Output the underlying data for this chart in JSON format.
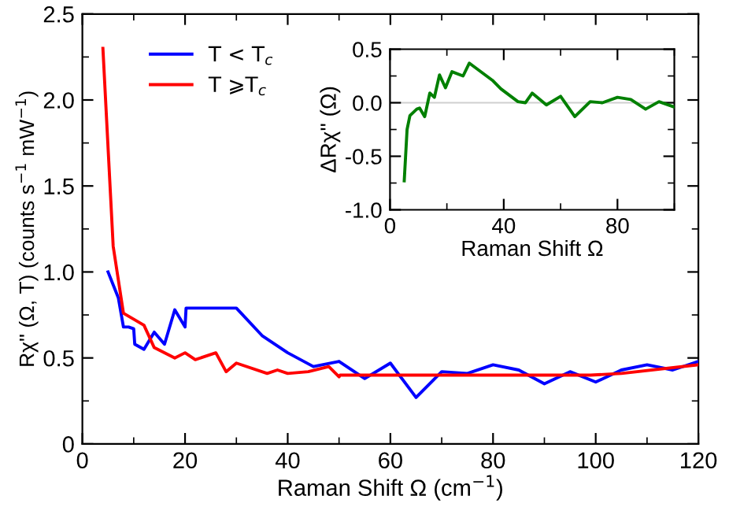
{
  "chart_data": [
    {
      "type": "line",
      "xlabel": "Raman Shift Ω (cm$^{−1}$)",
      "ylabel": "Rχ'' (Ω, T) (counts s$^{−1}$ mW$^{−1}$)",
      "xlim": [
        0,
        120
      ],
      "ylim": [
        0,
        2.5
      ],
      "xticks": [
        0,
        20,
        40,
        60,
        80,
        100,
        120
      ],
      "yticks": [
        {
          "value": 0,
          "label": "0"
        },
        0.5,
        {
          "value": 1,
          "label": "1.0"
        },
        1.5,
        {
          "value": 2,
          "label": "2.0"
        },
        2.5
      ],
      "grid": false,
      "legend": "top left",
      "marker": "none",
      "line_style": "solid",
      "series": [
        {
          "name": "T < T$_{c}$",
          "color": "#0000ff",
          "x": [
            5,
            7,
            8,
            9,
            10,
            10.2,
            12,
            14,
            16,
            18,
            20,
            20.2,
            24,
            30,
            35,
            40,
            45,
            50,
            55,
            60,
            65,
            70,
            75,
            80,
            85,
            90,
            95,
            100,
            105,
            110,
            115,
            120
          ],
          "values": [
            1.0,
            0.85,
            0.68,
            0.68,
            0.67,
            0.58,
            0.55,
            0.65,
            0.58,
            0.78,
            0.68,
            0.79,
            0.79,
            0.79,
            0.63,
            0.53,
            0.45,
            0.48,
            0.38,
            0.47,
            0.27,
            0.42,
            0.41,
            0.46,
            0.43,
            0.35,
            0.42,
            0.36,
            0.43,
            0.46,
            0.43,
            0.48
          ]
        },
        {
          "name": "T ⩾T$_{c}$",
          "color": "#ff0000",
          "x": [
            4,
            6,
            8,
            12,
            14,
            18,
            20,
            22,
            26,
            28,
            30,
            36,
            38,
            40,
            44,
            48,
            50,
            50.2,
            99,
            105,
            120
          ],
          "values": [
            2.3,
            1.15,
            0.76,
            0.69,
            0.56,
            0.5,
            0.53,
            0.49,
            0.53,
            0.42,
            0.47,
            0.41,
            0.43,
            0.41,
            0.42,
            0.45,
            0.39,
            0.4,
            0.4,
            0.41,
            0.46
          ]
        }
      ]
    },
    {
      "type": "line",
      "xlabel": "Raman Shift Ω",
      "ylabel": "ΔRχ'' (Ω)",
      "xlim": [
        0,
        100
      ],
      "ylim": [
        -1.0,
        0.5
      ],
      "xticks": [
        0,
        40,
        80
      ],
      "yticks": [
        {
          "value": -1.0,
          "label": "-1.0"
        },
        {
          "value": -0.5,
          "label": "-0.5"
        },
        {
          "value": 0,
          "label": "0.0"
        },
        0.5
      ],
      "grid": false,
      "marker": "none",
      "line_style": "solid",
      "ref_lines": [
        {
          "axis": "y",
          "value": 0,
          "color": "#d0d0d0"
        }
      ],
      "series": [
        {
          "color": "#008000",
          "x": [
            5,
            6,
            7,
            9.4,
            10.4,
            12.2,
            14,
            15.6,
            17.4,
            19.5,
            21.8,
            25.7,
            27.9,
            36,
            39,
            45,
            47.6,
            50,
            55,
            60,
            65,
            70.4,
            74.7,
            80,
            84.7,
            89.9,
            94.6,
            100
          ],
          "values": [
            -0.73,
            -0.25,
            -0.12,
            -0.06,
            -0.05,
            -0.13,
            0.09,
            0.05,
            0.26,
            0.14,
            0.29,
            0.25,
            0.37,
            0.21,
            0.13,
            0.01,
            0.0,
            0.09,
            -0.02,
            0.06,
            -0.13,
            0.01,
            0.0,
            0.05,
            0.03,
            -0.06,
            0.01,
            -0.04
          ]
        }
      ]
    }
  ]
}
